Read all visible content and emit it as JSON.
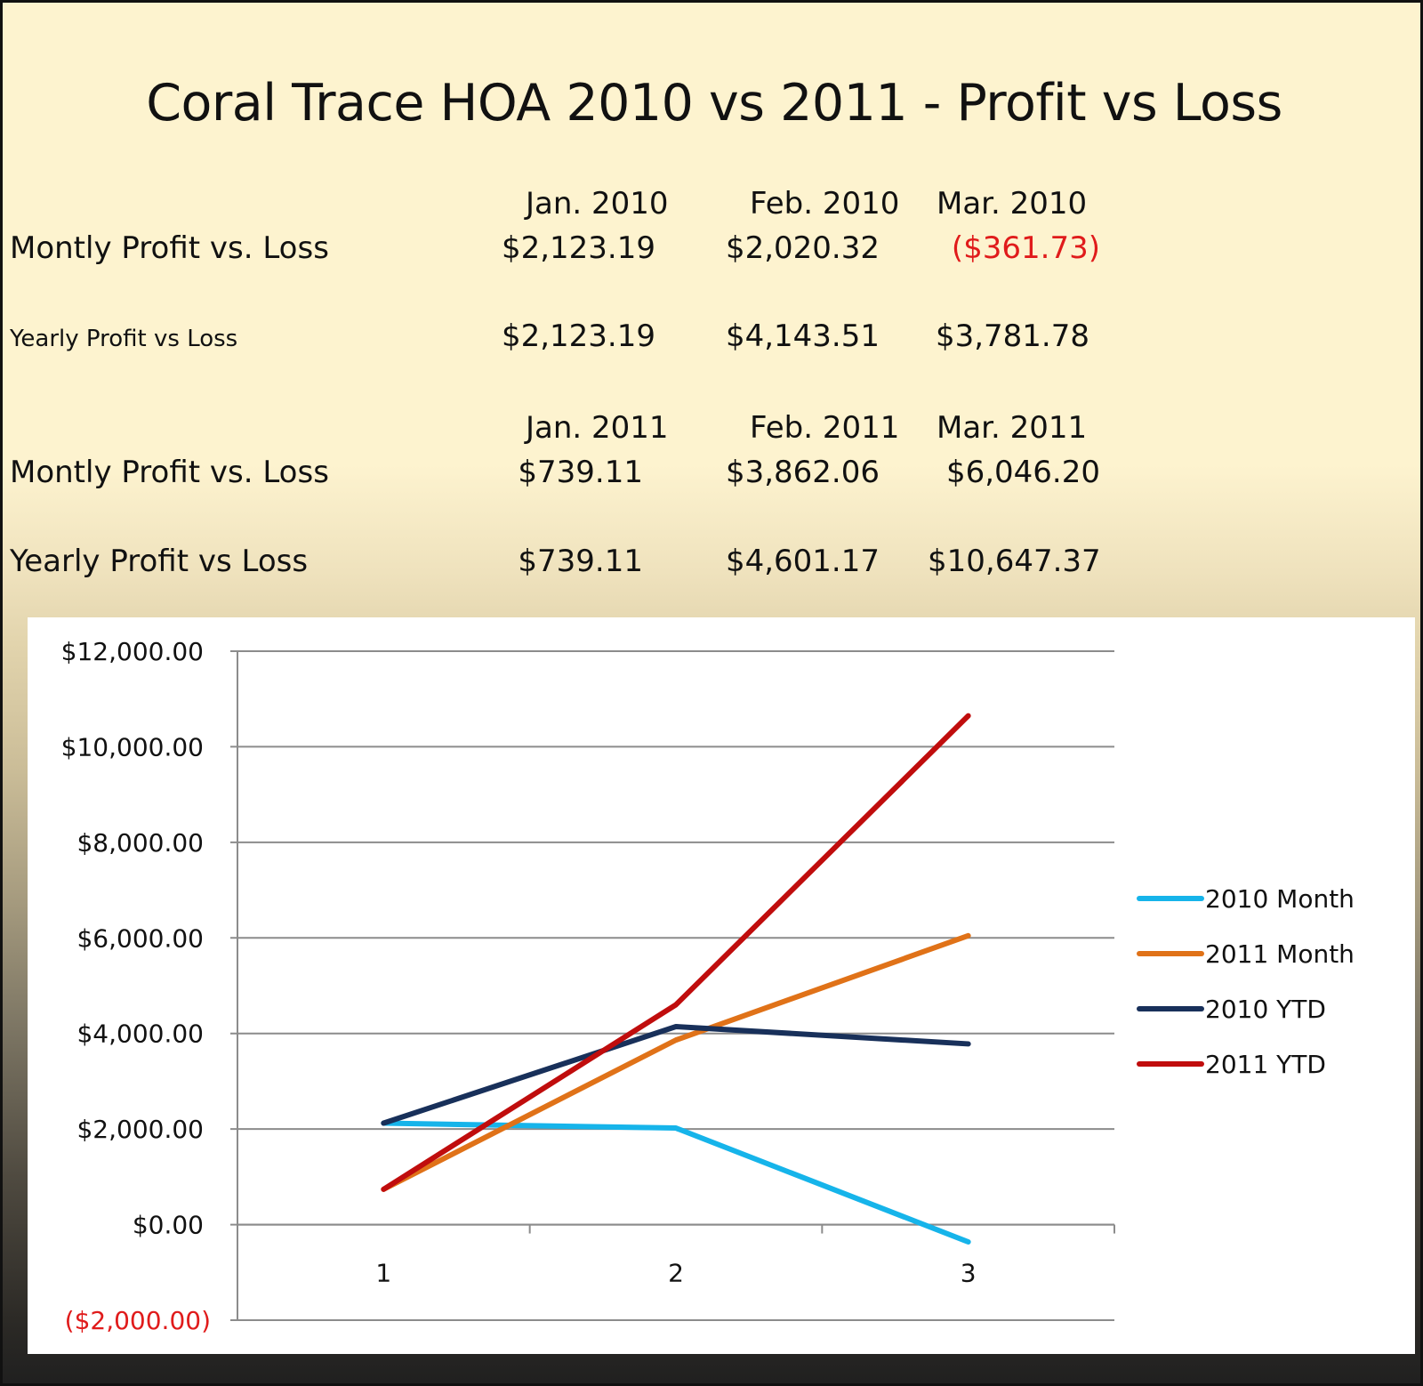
{
  "title": "Coral Trace HOA 2010 vs 2011 - Profit vs Loss",
  "table": {
    "section_2010": {
      "headers": [
        "Jan. 2010",
        "Feb. 2010",
        "Mar. 2010"
      ],
      "monthly_label": "Montly Profit vs. Loss",
      "monthly_values": [
        "$2,123.19",
        "$2,020.32",
        "($361.73)"
      ],
      "yearly_label": "Yearly Profit vs Loss",
      "yearly_values": [
        "$2,123.19",
        "$4,143.51",
        "$3,781.78"
      ]
    },
    "section_2011": {
      "headers": [
        "Jan. 2011",
        "Feb. 2011",
        "Mar. 2011"
      ],
      "monthly_label": "Montly Profit vs. Loss",
      "monthly_values": [
        "$739.11",
        "$3,862.06",
        "$6,046.20"
      ],
      "yearly_label": "Yearly Profit vs Loss",
      "yearly_values": [
        "$739.11",
        "$4,601.17",
        "$10,647.37"
      ]
    },
    "negative_color": "#e01b1b"
  },
  "chart_data": {
    "type": "line",
    "x": [
      1,
      2,
      3
    ],
    "ylim": [
      -2000,
      12000
    ],
    "y_ticks": [
      {
        "value": 12000,
        "label": "$12,000.00"
      },
      {
        "value": 10000,
        "label": "$10,000.00"
      },
      {
        "value": 8000,
        "label": "$8,000.00"
      },
      {
        "value": 6000,
        "label": "$6,000.00"
      },
      {
        "value": 4000,
        "label": "$4,000.00"
      },
      {
        "value": 2000,
        "label": "$2,000.00"
      },
      {
        "value": 0,
        "label": "$0.00"
      },
      {
        "value": -2000,
        "label": "($2,000.00)"
      }
    ],
    "x_tick_labels": [
      "1",
      "2",
      "3"
    ],
    "grid": true,
    "legend_position": "right",
    "series": [
      {
        "name": "2010 Month",
        "color": "#16b4ea",
        "values": [
          2123.19,
          2020.32,
          -361.73
        ]
      },
      {
        "name": "2011 Month",
        "color": "#e07218",
        "values": [
          739.11,
          3862.06,
          6046.2
        ]
      },
      {
        "name": "2010 YTD",
        "color": "#18305a",
        "values": [
          2123.19,
          4143.51,
          3781.78
        ]
      },
      {
        "name": "2011 YTD",
        "color": "#c00d0d",
        "values": [
          739.11,
          4601.17,
          10647.37
        ]
      }
    ]
  }
}
